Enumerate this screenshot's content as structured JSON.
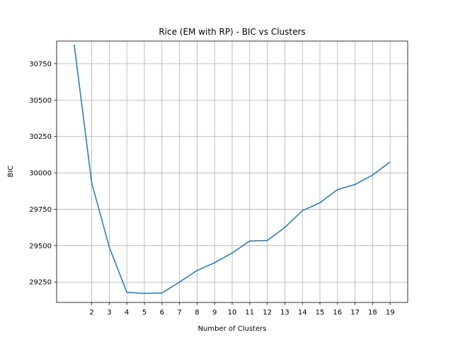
{
  "chart_data": {
    "type": "line",
    "title": "Rice (EM with RP) - BIC vs Clusters",
    "xlabel": "Number of Clusters",
    "ylabel": "BIC",
    "xlim": [
      0,
      20
    ],
    "ylim": [
      29110,
      30905
    ],
    "xticks": [
      2,
      3,
      4,
      5,
      6,
      7,
      8,
      9,
      10,
      11,
      12,
      13,
      14,
      15,
      16,
      17,
      18,
      19
    ],
    "yticks": [
      29250,
      29500,
      29750,
      30000,
      30250,
      30500,
      30750
    ],
    "grid": true,
    "line_color": "#1f77b4",
    "x": [
      1,
      2,
      3,
      4,
      5,
      6,
      7,
      8,
      9,
      10,
      11,
      12,
      13,
      14,
      15,
      16,
      17,
      18,
      19
    ],
    "values": [
      30880,
      29930,
      29490,
      29180,
      29172,
      29175,
      29250,
      29330,
      29383,
      29450,
      29532,
      29535,
      29625,
      29740,
      29795,
      29885,
      29920,
      29985,
      30075
    ]
  }
}
